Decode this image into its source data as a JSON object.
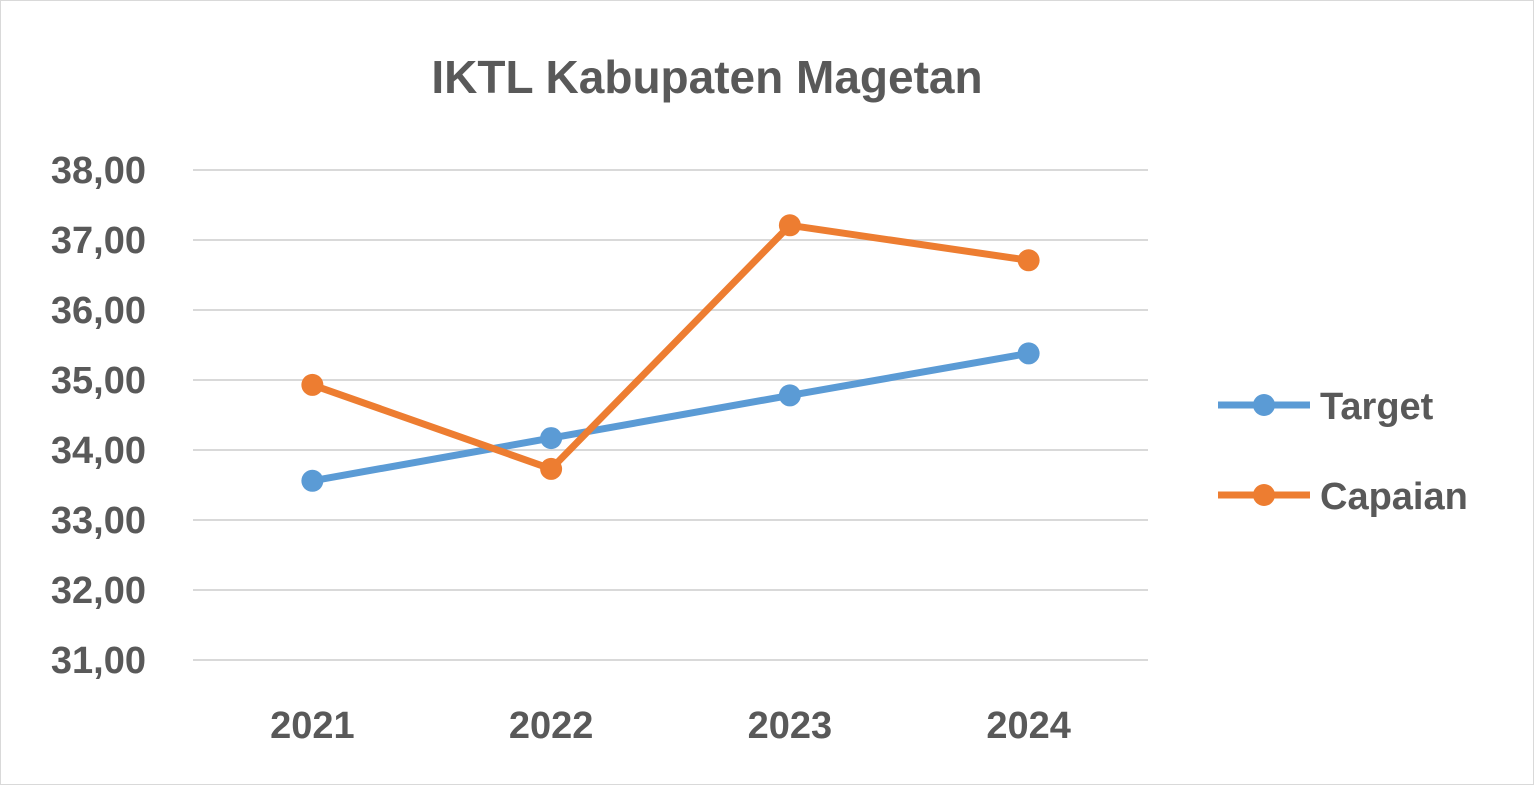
{
  "chart_data": {
    "type": "line",
    "title": "IKTL Kabupaten Magetan",
    "xlabel": "",
    "ylabel": "",
    "categories": [
      "2021",
      "2022",
      "2023",
      "2024"
    ],
    "y_tick_labels": [
      "31,00",
      "32,00",
      "33,00",
      "34,00",
      "35,00",
      "36,00",
      "37,00",
      "38,00"
    ],
    "y_ticks": [
      31,
      32,
      33,
      34,
      35,
      36,
      37,
      38
    ],
    "ylim": [
      31,
      38
    ],
    "grid": true,
    "legend_position": "right",
    "series": [
      {
        "name": "Target",
        "color": "#5b9bd5",
        "values": [
          33.56,
          34.17,
          34.78,
          35.38
        ]
      },
      {
        "name": "Capaian",
        "color": "#ed7d31",
        "values": [
          34.93,
          33.73,
          37.21,
          36.71
        ]
      }
    ]
  }
}
